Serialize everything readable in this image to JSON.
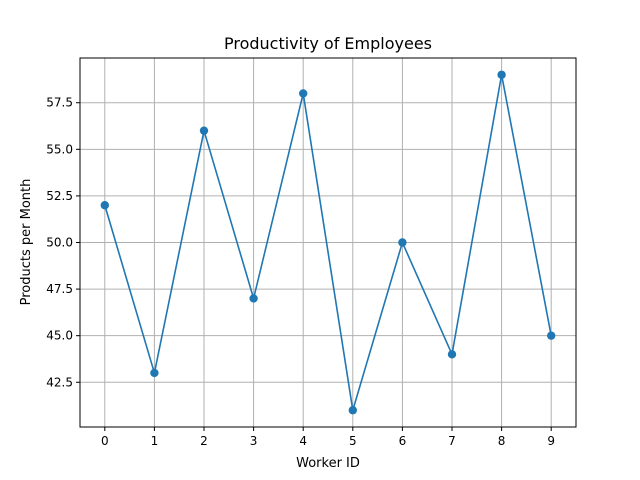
{
  "chart_data": {
    "type": "line",
    "title": "Productivity of Employees",
    "xlabel": "Worker ID",
    "ylabel": "Products per Month",
    "x": [
      0,
      1,
      2,
      3,
      4,
      5,
      6,
      7,
      8,
      9
    ],
    "series": [
      {
        "values": [
          52,
          43,
          56,
          47,
          58,
          41,
          50,
          44,
          59,
          45
        ],
        "color": "#1f77b4",
        "marker": "circle"
      }
    ],
    "xlim": [
      -0.5,
      9.5
    ],
    "ylim": [
      40.1,
      59.9
    ],
    "x_ticks": [
      "0",
      "1",
      "2",
      "3",
      "4",
      "5",
      "6",
      "7",
      "8",
      "9"
    ],
    "y_ticks": [
      "42.5",
      "45.0",
      "47.5",
      "50.0",
      "52.5",
      "55.0",
      "57.5"
    ],
    "grid": true,
    "legend": "none"
  }
}
